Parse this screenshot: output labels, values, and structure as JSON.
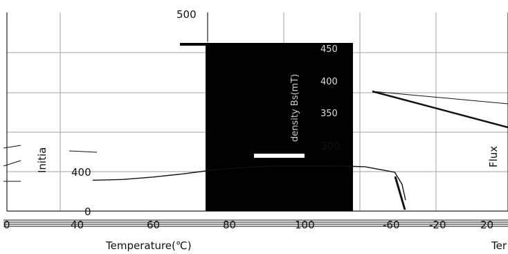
{
  "chart_data": [
    {
      "type": "line",
      "title": "",
      "xlabel": "Temperature(℃)",
      "ylabel": "Initia",
      "x_ticks": [
        "0",
        "40",
        "60",
        "80",
        "100"
      ],
      "y_ticks_upper": [
        "500"
      ],
      "y_ticks_lower": [
        "400",
        "0"
      ],
      "grid": true,
      "series": [
        {
          "x": [
            44,
            52,
            60,
            68,
            76,
            84,
            92,
            100,
            108,
            116,
            120,
            124,
            126
          ],
          "y": [
            400,
            402,
            408,
            416,
            426,
            432,
            436,
            436,
            436,
            434,
            420,
            390,
            350
          ]
        }
      ]
    },
    {
      "type": "line",
      "title": "",
      "ylabel": "density Bs(mT)",
      "y_ticks": [
        "450",
        "400",
        "350",
        "300"
      ]
    },
    {
      "type": "line",
      "title": "",
      "xlabel": "Ter",
      "ylabel": "Flux",
      "x_ticks": [
        "-60",
        "-20",
        "20"
      ],
      "series": [
        {
          "x": [
            -74,
            20
          ],
          "y": [
            0.7,
            0.45
          ]
        }
      ]
    }
  ],
  "colors": {
    "line": "#111111",
    "axis": "#333333",
    "grid": "#999999",
    "overlay": "#000000"
  }
}
